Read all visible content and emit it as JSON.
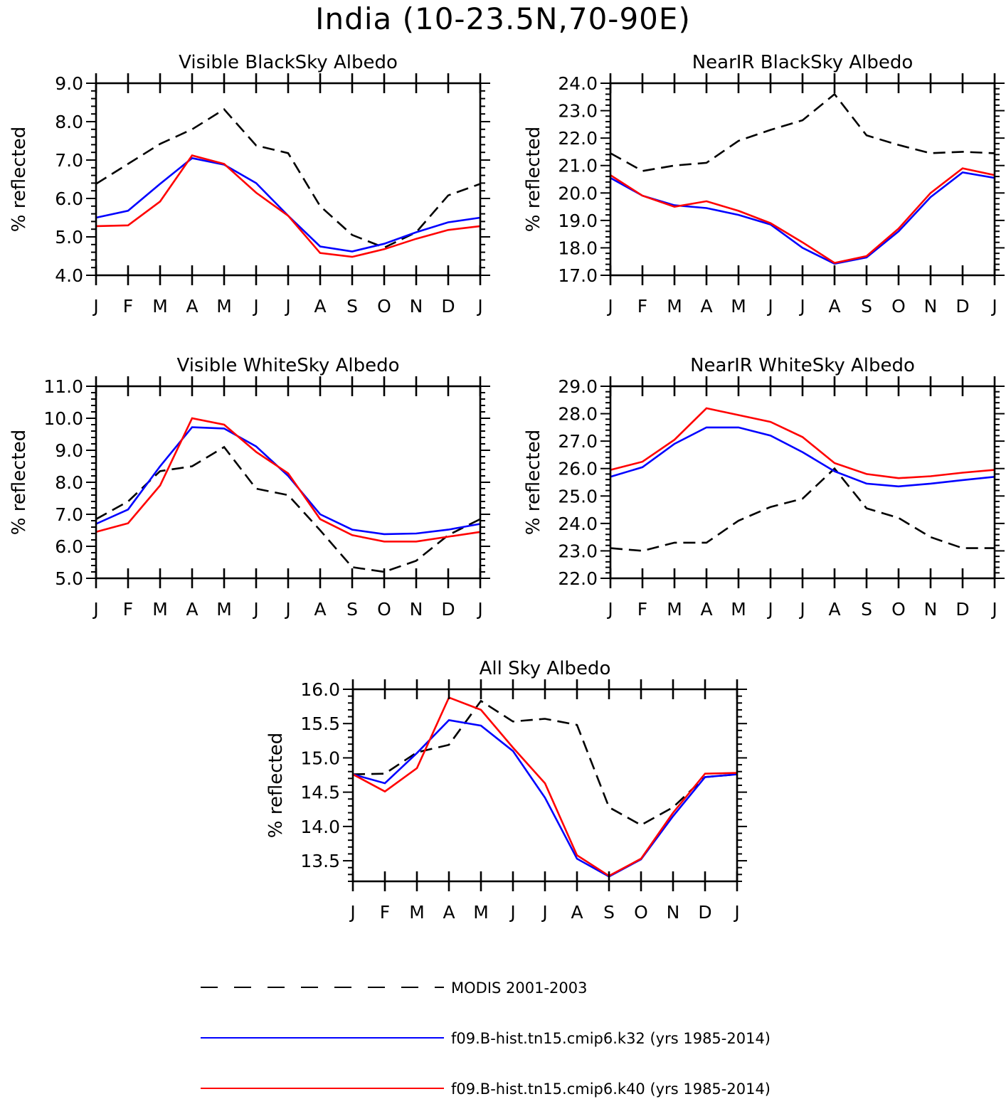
{
  "title": "India (10-23.5N,70-90E)",
  "chart_data": [
    {
      "type": "line",
      "title": "Visible BlackSky Albedo",
      "ylabel": "% reflected",
      "xlabel": "",
      "categories": [
        "J",
        "F",
        "M",
        "A",
        "M",
        "J",
        "J",
        "A",
        "S",
        "O",
        "N",
        "D",
        "J"
      ],
      "ylim": [
        4.0,
        9.0
      ],
      "yticks": [
        "4.0",
        "5.0",
        "6.0",
        "7.0",
        "8.0",
        "9.0"
      ],
      "grid": false,
      "series": [
        {
          "name": "MODIS 2001-2003",
          "color": "#000000",
          "dashed": true,
          "values": [
            6.38,
            6.9,
            7.42,
            7.8,
            8.32,
            7.38,
            7.18,
            5.8,
            5.05,
            4.72,
            5.12,
            6.08,
            6.38
          ]
        },
        {
          "name": "f09.B-hist.tn15.cmip6.k32 (yrs 1985-2014)",
          "color": "#0000ff",
          "dashed": false,
          "values": [
            5.5,
            5.68,
            6.38,
            7.05,
            6.88,
            6.4,
            5.55,
            4.75,
            4.62,
            4.82,
            5.12,
            5.38,
            5.5
          ]
        },
        {
          "name": "f09.B-hist.tn15.cmip6.k40 (yrs 1985-2014)",
          "color": "#ff0000",
          "dashed": false,
          "values": [
            5.28,
            5.3,
            5.92,
            7.12,
            6.9,
            6.15,
            5.55,
            4.58,
            4.48,
            4.68,
            4.95,
            5.18,
            5.28
          ]
        }
      ]
    },
    {
      "type": "line",
      "title": "NearIR BlackSky Albedo",
      "ylabel": "% reflected",
      "xlabel": "",
      "categories": [
        "J",
        "F",
        "M",
        "A",
        "M",
        "J",
        "J",
        "A",
        "S",
        "O",
        "N",
        "D",
        "J"
      ],
      "ylim": [
        17.0,
        24.0
      ],
      "yticks": [
        "17.0",
        "18.0",
        "19.0",
        "20.0",
        "21.0",
        "22.0",
        "23.0",
        "24.0"
      ],
      "grid": false,
      "series": [
        {
          "name": "MODIS 2001-2003",
          "color": "#000000",
          "dashed": true,
          "values": [
            21.45,
            20.8,
            21.0,
            21.1,
            21.9,
            22.3,
            22.65,
            23.6,
            22.1,
            21.75,
            21.45,
            21.5,
            21.45
          ]
        },
        {
          "name": "f09.B-hist.tn15.cmip6.k32 (yrs 1985-2014)",
          "color": "#0000ff",
          "dashed": false,
          "values": [
            20.55,
            19.9,
            19.55,
            19.45,
            19.2,
            18.85,
            18.0,
            17.42,
            17.65,
            18.6,
            19.85,
            20.75,
            20.55
          ]
        },
        {
          "name": "f09.B-hist.tn15.cmip6.k40 (yrs 1985-2014)",
          "color": "#ff0000",
          "dashed": false,
          "values": [
            20.65,
            19.9,
            19.5,
            19.7,
            19.35,
            18.9,
            18.2,
            17.45,
            17.7,
            18.7,
            20.0,
            20.9,
            20.65
          ]
        }
      ]
    },
    {
      "type": "line",
      "title": "Visible WhiteSky Albedo",
      "ylabel": "% reflected",
      "xlabel": "",
      "categories": [
        "J",
        "F",
        "M",
        "A",
        "M",
        "J",
        "J",
        "A",
        "S",
        "O",
        "N",
        "D",
        "J"
      ],
      "ylim": [
        5.0,
        11.0
      ],
      "yticks": [
        "5.0",
        "6.0",
        "7.0",
        "8.0",
        "9.0",
        "10.0",
        "11.0"
      ],
      "grid": false,
      "series": [
        {
          "name": "MODIS 2001-2003",
          "color": "#000000",
          "dashed": true,
          "values": [
            6.85,
            7.4,
            8.35,
            8.5,
            9.1,
            7.8,
            7.6,
            6.5,
            5.35,
            5.2,
            5.55,
            6.35,
            6.85
          ]
        },
        {
          "name": "f09.B-hist.tn15.cmip6.k32 (yrs 1985-2014)",
          "color": "#0000ff",
          "dashed": false,
          "values": [
            6.7,
            7.15,
            8.5,
            9.72,
            9.68,
            9.12,
            8.2,
            7.0,
            6.52,
            6.38,
            6.4,
            6.52,
            6.7
          ]
        },
        {
          "name": "f09.B-hist.tn15.cmip6.k40 (yrs 1985-2014)",
          "color": "#ff0000",
          "dashed": false,
          "values": [
            6.45,
            6.72,
            7.9,
            10.0,
            9.8,
            8.95,
            8.28,
            6.85,
            6.35,
            6.15,
            6.15,
            6.3,
            6.45
          ]
        }
      ]
    },
    {
      "type": "line",
      "title": "NearIR WhiteSky Albedo",
      "ylabel": "% reflected",
      "xlabel": "",
      "categories": [
        "J",
        "F",
        "M",
        "A",
        "M",
        "J",
        "J",
        "A",
        "S",
        "O",
        "N",
        "D",
        "J"
      ],
      "ylim": [
        22.0,
        29.0
      ],
      "yticks": [
        "22.0",
        "23.0",
        "24.0",
        "25.0",
        "26.0",
        "27.0",
        "28.0",
        "29.0"
      ],
      "grid": false,
      "series": [
        {
          "name": "MODIS 2001-2003",
          "color": "#000000",
          "dashed": true,
          "values": [
            23.1,
            23.0,
            23.3,
            23.3,
            24.1,
            24.6,
            24.9,
            26.0,
            24.55,
            24.2,
            23.5,
            23.1,
            23.1
          ]
        },
        {
          "name": "f09.B-hist.tn15.cmip6.k32 (yrs 1985-2014)",
          "color": "#0000ff",
          "dashed": false,
          "values": [
            25.7,
            26.05,
            26.9,
            27.5,
            27.5,
            27.2,
            26.6,
            25.9,
            25.45,
            25.35,
            25.45,
            25.58,
            25.7
          ]
        },
        {
          "name": "f09.B-hist.tn15.cmip6.k40 (yrs 1985-2014)",
          "color": "#ff0000",
          "dashed": false,
          "values": [
            25.95,
            26.25,
            27.05,
            28.2,
            27.95,
            27.7,
            27.15,
            26.2,
            25.8,
            25.65,
            25.72,
            25.85,
            25.95
          ]
        }
      ]
    },
    {
      "type": "line",
      "title": "All Sky Albedo",
      "ylabel": "% reflected",
      "xlabel": "",
      "categories": [
        "J",
        "F",
        "M",
        "A",
        "M",
        "J",
        "J",
        "A",
        "S",
        "O",
        "N",
        "D",
        "J"
      ],
      "ylim": [
        13.2,
        16.0
      ],
      "yticks": [
        "13.5",
        "14.0",
        "14.5",
        "15.0",
        "15.5",
        "16.0"
      ],
      "grid": false,
      "series": [
        {
          "name": "MODIS 2001-2003",
          "color": "#000000",
          "dashed": true,
          "values": [
            14.76,
            14.77,
            15.08,
            15.19,
            15.83,
            15.53,
            15.57,
            15.48,
            14.28,
            14.02,
            14.28,
            14.72,
            14.76
          ]
        },
        {
          "name": "f09.B-hist.tn15.cmip6.k32 (yrs 1985-2014)",
          "color": "#0000ff",
          "dashed": false,
          "values": [
            14.76,
            14.63,
            15.07,
            15.55,
            15.47,
            15.1,
            14.42,
            13.53,
            13.27,
            13.52,
            14.15,
            14.72,
            14.76
          ]
        },
        {
          "name": "f09.B-hist.tn15.cmip6.k40 (yrs 1985-2014)",
          "color": "#ff0000",
          "dashed": false,
          "values": [
            14.76,
            14.51,
            14.85,
            15.88,
            15.7,
            15.15,
            14.63,
            13.58,
            13.28,
            13.53,
            14.2,
            14.77,
            14.78
          ]
        }
      ]
    }
  ],
  "legend": [
    {
      "label": "MODIS 2001-2003",
      "color": "#000000",
      "dashed": true
    },
    {
      "label": "f09.B-hist.tn15.cmip6.k32 (yrs 1985-2014)",
      "color": "#0000ff",
      "dashed": false
    },
    {
      "label": "f09.B-hist.tn15.cmip6.k40 (yrs 1985-2014)",
      "color": "#ff0000",
      "dashed": false
    }
  ]
}
